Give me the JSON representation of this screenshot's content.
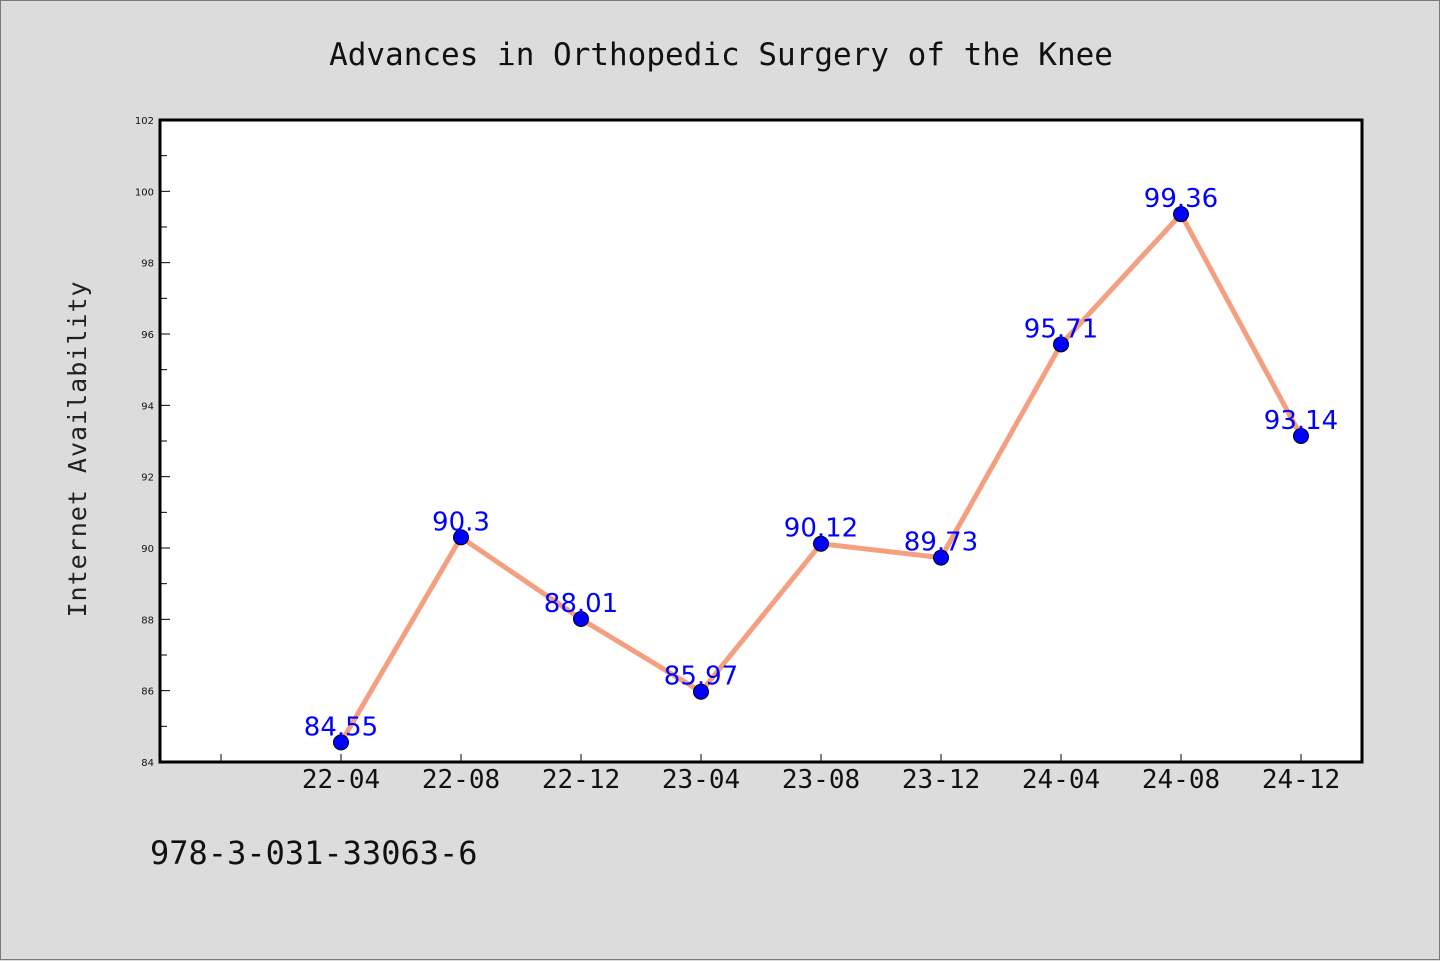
{
  "chart_data": {
    "type": "line",
    "title": "Advances in Orthopedic Surgery of the Knee",
    "xlabel": "",
    "ylabel": "Internet Availability",
    "categories": [
      "22-04",
      "22-08",
      "22-12",
      "23-04",
      "23-08",
      "23-12",
      "24-04",
      "24-08",
      "24-12"
    ],
    "values": [
      84.55,
      90.3,
      88.01,
      85.97,
      90.12,
      89.73,
      95.71,
      99.36,
      93.14
    ],
    "data_labels": [
      "84.55",
      "90.3",
      "88.01",
      "85.97",
      "90.12",
      "89.73",
      "95.71",
      "99.36",
      "93.14"
    ],
    "ylim": [
      84,
      102
    ],
    "yticks": [
      "84",
      "86",
      "88",
      "90",
      "92",
      "94",
      "96",
      "98",
      "100",
      "102"
    ],
    "grid": false,
    "legend": "none",
    "colors": {
      "line": "#f4a080",
      "marker": "#0000ff",
      "label": "#0000ff",
      "frame": "#000000",
      "background": "#dcdcdc",
      "plot_background": "#ffffff"
    }
  },
  "footer": {
    "isbn": "978-3-031-33063-6"
  }
}
